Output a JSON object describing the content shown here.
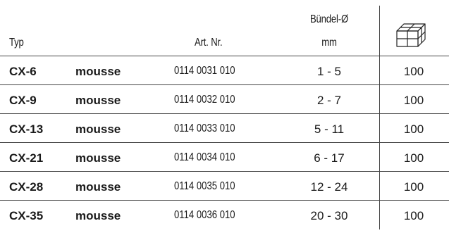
{
  "header": {
    "typ": "Typ",
    "art_nr": "Art. Nr.",
    "diameter": "Bündel-Ø",
    "diameter_unit": "mm",
    "quantity_icon": "box-icon"
  },
  "rows": [
    {
      "typ": "CX-6",
      "material": "mousse",
      "art_nr": "0114 0031 010",
      "diameter": "1 - 5",
      "qty": "100"
    },
    {
      "typ": "CX-9",
      "material": "mousse",
      "art_nr": "0114 0032 010",
      "diameter": "2 - 7",
      "qty": "100"
    },
    {
      "typ": "CX-13",
      "material": "mousse",
      "art_nr": "0114 0033 010",
      "diameter": "5 - 11",
      "qty": "100"
    },
    {
      "typ": "CX-21",
      "material": "mousse",
      "art_nr": "0114 0034 010",
      "diameter": "6 - 17",
      "qty": "100"
    },
    {
      "typ": "CX-28",
      "material": "mousse",
      "art_nr": "0114 0035 010",
      "diameter": "12 - 24",
      "qty": "100"
    },
    {
      "typ": "CX-35",
      "material": "mousse",
      "art_nr": "0114 0036 010",
      "diameter": "20 - 30",
      "qty": "100"
    }
  ]
}
